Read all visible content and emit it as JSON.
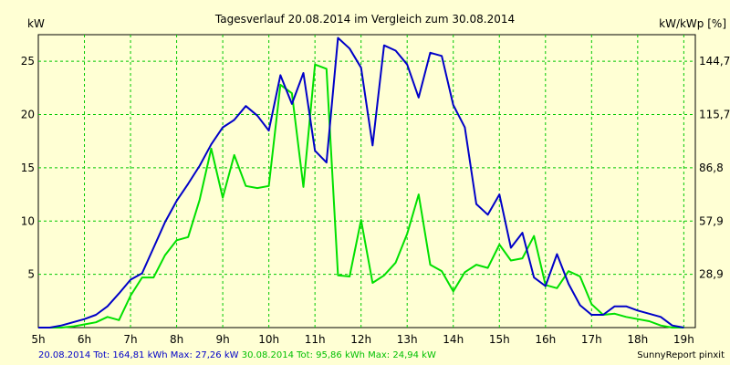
{
  "chart_data": {
    "type": "line",
    "title": "Tagesverlauf 20.08.2014 im Vergleich zum 30.08.2014",
    "ylabel_left": "kW",
    "ylabel_right": "kW/kWp [%]",
    "xlim": [
      5,
      19.25
    ],
    "ylim": [
      0,
      27.5
    ],
    "x_ticks": [
      "5h",
      "6h",
      "7h",
      "8h",
      "9h",
      "10h",
      "11h",
      "12h",
      "13h",
      "14h",
      "15h",
      "16h",
      "17h",
      "18h",
      "19h"
    ],
    "y_ticks_left": [
      "5",
      "10",
      "15",
      "20",
      "25"
    ],
    "y_ticks_right": [
      "28,9",
      "57,9",
      "86,8",
      "115,7",
      "144,7"
    ],
    "grid": true,
    "colors": {
      "series1": "#0000c8",
      "series2": "#00e000",
      "grid": "#00c800",
      "plot_bg": "#ffffd4"
    },
    "series": [
      {
        "name": "20.08.2014",
        "x": [
          5,
          5.25,
          5.5,
          5.75,
          6,
          6.25,
          6.5,
          6.75,
          7,
          7.25,
          7.5,
          7.75,
          8,
          8.25,
          8.5,
          8.75,
          9,
          9.25,
          9.5,
          9.75,
          10,
          10.25,
          10.5,
          10.75,
          11,
          11.25,
          11.5,
          11.75,
          12,
          12.25,
          12.5,
          12.75,
          13,
          13.25,
          13.5,
          13.75,
          14,
          14.25,
          14.5,
          14.75,
          15,
          15.25,
          15.5,
          15.75,
          16,
          16.25,
          16.5,
          16.75,
          17,
          17.25,
          17.5,
          17.75,
          18,
          18.25,
          18.5,
          18.75,
          19
        ],
        "values": [
          0,
          0,
          0.2,
          0.5,
          0.8,
          1.2,
          2,
          3.2,
          4.5,
          5.1,
          7.5,
          9.9,
          11.9,
          13.5,
          15.2,
          17.2,
          18.8,
          19.5,
          20.8,
          19.9,
          18.5,
          23.7,
          21,
          23.9,
          16.6,
          15.5,
          27.2,
          26.2,
          24.4,
          17.1,
          26.5,
          26,
          24.7,
          21.6,
          25.8,
          25.5,
          20.9,
          18.8,
          11.6,
          10.6,
          12.5,
          7.5,
          8.9,
          4.7,
          3.9,
          6.9,
          4.1,
          2.1,
          1.2,
          1.2,
          2,
          2,
          1.6,
          1.3,
          1,
          0.2,
          0
        ]
      },
      {
        "name": "30.08.2014",
        "x": [
          5,
          5.25,
          5.5,
          5.75,
          6,
          6.25,
          6.5,
          6.75,
          7,
          7.25,
          7.5,
          7.75,
          8,
          8.25,
          8.5,
          8.75,
          9,
          9.25,
          9.5,
          9.75,
          10,
          10.25,
          10.5,
          10.75,
          11,
          11.25,
          11.5,
          11.75,
          12,
          12.25,
          12.5,
          12.75,
          13,
          13.25,
          13.5,
          13.75,
          14,
          14.25,
          14.5,
          14.75,
          15,
          15.25,
          15.5,
          15.75,
          16,
          16.25,
          16.5,
          16.75,
          17,
          17.25,
          17.5,
          17.75,
          18,
          18.25,
          18.5,
          18.75,
          19
        ],
        "values": [
          0,
          0,
          0,
          0.1,
          0.3,
          0.5,
          1,
          0.7,
          3,
          4.7,
          4.7,
          6.8,
          8.2,
          8.5,
          12,
          16.8,
          12.2,
          16.2,
          13.3,
          13.1,
          13.3,
          22.8,
          22,
          13.2,
          24.7,
          24.3,
          4.9,
          4.8,
          10.1,
          4.2,
          4.9,
          6.1,
          8.8,
          12.5,
          5.9,
          5.3,
          3.4,
          5.2,
          5.9,
          5.6,
          7.8,
          6.3,
          6.5,
          8.6,
          4,
          3.7,
          5.3,
          4.8,
          2.2,
          1.2,
          1.3,
          1,
          0.8,
          0.6,
          0.2,
          0,
          0
        ]
      }
    ]
  },
  "footer": {
    "series1_text": "20.08.2014 Tot: 164,81 kWh Max: 27,26 kW",
    "series2_text": "30.08.2014 Tot: 95,86 kWh Max: 24,94 kW",
    "credit": "SunnyReport pinxit"
  }
}
